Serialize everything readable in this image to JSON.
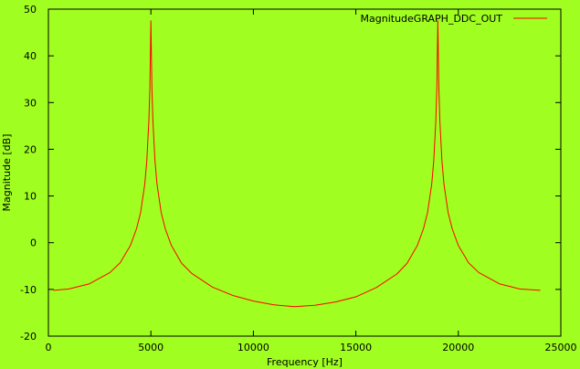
{
  "chart_data": {
    "type": "line",
    "title": "",
    "xlabel": "Frequency [Hz]",
    "ylabel": "Magnitude [dB]",
    "xlim": [
      0,
      25000
    ],
    "ylim": [
      -20,
      50
    ],
    "xticks": [
      0,
      5000,
      10000,
      15000,
      20000,
      25000
    ],
    "yticks": [
      -20,
      -10,
      0,
      10,
      20,
      30,
      40,
      50
    ],
    "grid": false,
    "legend": "top-right",
    "background_color": "#a0ff20",
    "series": [
      {
        "name": "MagnitudeGRAPH_DDC_OUT",
        "color": "#ff0000",
        "x": [
          250,
          1000,
          2000,
          3000,
          3500,
          4000,
          4300,
          4500,
          4700,
          4800,
          4900,
          4950,
          5000,
          5050,
          5100,
          5200,
          5300,
          5500,
          5700,
          6000,
          6500,
          7000,
          8000,
          9000,
          10000,
          11000,
          12000,
          13000,
          14000,
          15000,
          16000,
          17000,
          17500,
          18000,
          18300,
          18500,
          18700,
          18800,
          18900,
          18950,
          19000,
          19050,
          19100,
          19200,
          19300,
          19500,
          19700,
          20000,
          20500,
          21000,
          22000,
          23000,
          24000
        ],
        "y": [
          -10.2,
          -9.9,
          -8.8,
          -6.4,
          -4.3,
          -0.6,
          3.0,
          6.5,
          12.5,
          17.5,
          26.0,
          33.0,
          47.5,
          33.0,
          26.0,
          17.5,
          12.5,
          6.5,
          3.0,
          -0.6,
          -4.4,
          -6.6,
          -9.5,
          -11.3,
          -12.5,
          -13.3,
          -13.7,
          -13.4,
          -12.7,
          -11.6,
          -9.6,
          -6.7,
          -4.4,
          -0.6,
          3.0,
          6.5,
          12.5,
          17.5,
          26.0,
          33.0,
          47.5,
          33.0,
          26.0,
          17.5,
          12.5,
          6.5,
          3.0,
          -0.6,
          -4.3,
          -6.4,
          -8.8,
          -9.9,
          -10.2
        ]
      }
    ]
  }
}
